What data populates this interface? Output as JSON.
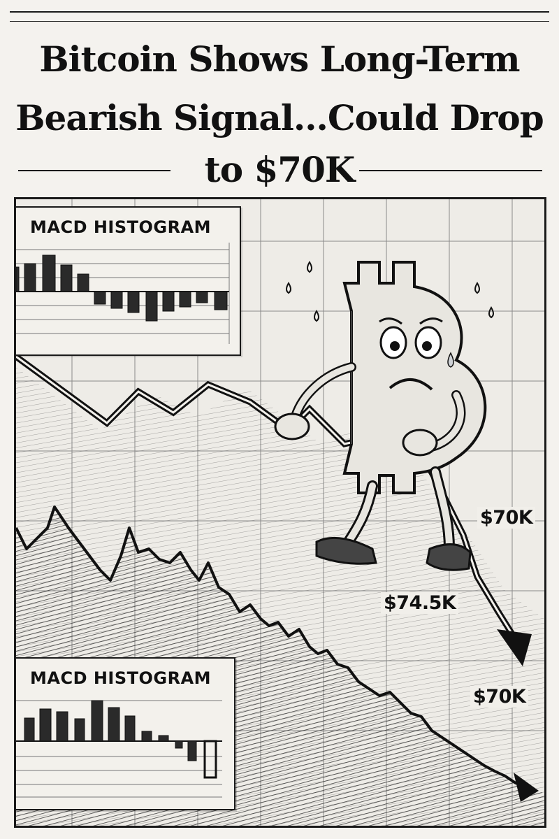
{
  "headline": {
    "line1": "Bitcoin Shows Long-Term",
    "line2": "Bearish Signal…Could Drop",
    "line3": "to $70K"
  },
  "inset_top": {
    "title": "MACD HISTOGRAM"
  },
  "inset_bottom": {
    "title": "MACD HISTOGRAM"
  },
  "price_labels": {
    "top": "$70K",
    "middle": "$74.5K",
    "bottom": "$70K"
  },
  "mascot": {
    "icon": "bitcoin-mascot-icon",
    "mood": "worried"
  },
  "colors": {
    "ink": "#1a1a1a",
    "paper": "#f4f2ee"
  }
}
